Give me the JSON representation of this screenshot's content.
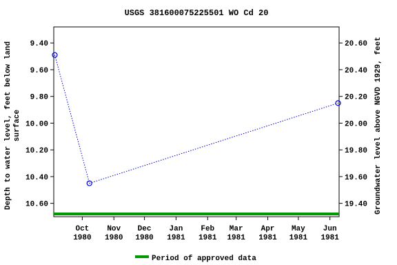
{
  "chart_data": {
    "type": "line",
    "title": "USGS 381600075225501 WO Cd  20",
    "y_label": "Depth to water level, feet below land surface",
    "y_label_lines": [
      "Depth to water level, feet below land",
      "surface"
    ],
    "y2_label": "Groundwater level above NGVD 1929, feet",
    "x": [
      "1980-09-04",
      "1980-10-08",
      "1981-06-09"
    ],
    "series": [
      {
        "name": "Depth to water level",
        "color": "#0000cc",
        "values": [
          9.49,
          10.45,
          9.85
        ]
      }
    ],
    "xlim": [
      "1980-09-03",
      "1981-06-10"
    ],
    "xticks": [
      {
        "value": "1980-10-01",
        "label": [
          "Oct",
          "1980"
        ]
      },
      {
        "value": "1980-11-01",
        "label": [
          "Nov",
          "1980"
        ]
      },
      {
        "value": "1980-12-01",
        "label": [
          "Dec",
          "1980"
        ]
      },
      {
        "value": "1981-01-01",
        "label": [
          "Jan",
          "1981"
        ]
      },
      {
        "value": "1981-02-01",
        "label": [
          "Feb",
          "1981"
        ]
      },
      {
        "value": "1981-03-01",
        "label": [
          "Mar",
          "1981"
        ]
      },
      {
        "value": "1981-04-01",
        "label": [
          "Apr",
          "1981"
        ]
      },
      {
        "value": "1981-05-01",
        "label": [
          "May",
          "1981"
        ]
      },
      {
        "value": "1981-06-01",
        "label": [
          "Jun",
          "1981"
        ]
      }
    ],
    "ylim": [
      10.7,
      9.28
    ],
    "yticks": [
      {
        "value": 9.4,
        "label": "9.40"
      },
      {
        "value": 9.6,
        "label": "9.60"
      },
      {
        "value": 9.8,
        "label": "9.80"
      },
      {
        "value": 10.0,
        "label": "10.00"
      },
      {
        "value": 10.2,
        "label": "10.20"
      },
      {
        "value": 10.4,
        "label": "10.40"
      },
      {
        "value": 10.6,
        "label": "10.60"
      }
    ],
    "y2lim": [
      19.3,
      20.72
    ],
    "y2ticks": [
      {
        "value": 19.4,
        "label": "19.40"
      },
      {
        "value": 19.6,
        "label": "19.60"
      },
      {
        "value": 19.8,
        "label": "19.80"
      },
      {
        "value": 20.0,
        "label": "20.00"
      },
      {
        "value": 20.2,
        "label": "20.20"
      },
      {
        "value": 20.4,
        "label": "20.40"
      },
      {
        "value": 20.6,
        "label": "20.60"
      }
    ],
    "approved_periods": {
      "name": "Period of approved data",
      "color": "#009900",
      "ranges": [
        [
          "1980-09-03",
          "1981-06-10"
        ]
      ]
    }
  }
}
